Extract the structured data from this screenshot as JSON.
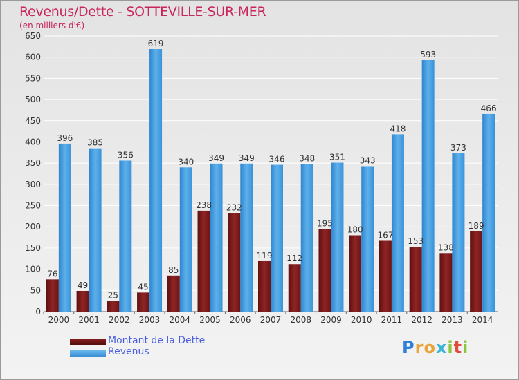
{
  "title": "Revenus/Dette - SOTTEVILLE-SUR-MER",
  "subtitle": "(en milliers d'€)",
  "logo": {
    "letters": [
      {
        "ch": "P",
        "color": "#2f7fd6"
      },
      {
        "ch": "r",
        "color": "#e8a33a"
      },
      {
        "ch": "o",
        "color": "#e8a33a"
      },
      {
        "ch": "x",
        "color": "#3bb3d8"
      },
      {
        "ch": "i",
        "color": "#8cc63f"
      },
      {
        "ch": "t",
        "color": "#e24a3b"
      },
      {
        "ch": "i",
        "color": "#8cc63f"
      }
    ]
  },
  "colors": {
    "debt": "#7b1a1a",
    "debt_light": "#a8302f",
    "revenue": "#3d97dc",
    "revenue_light": "#5fb2ea",
    "grid": "#ffffff",
    "axis_text": "#333333"
  },
  "chart_data": {
    "type": "bar",
    "categories": [
      "2000",
      "2001",
      "2002",
      "2003",
      "2004",
      "2005",
      "2006",
      "2007",
      "2008",
      "2009",
      "2010",
      "2011",
      "2012",
      "2013",
      "2014"
    ],
    "series": [
      {
        "name": "Montant de la Dette",
        "values": [
          76,
          49,
          25,
          45,
          85,
          238,
          232,
          119,
          112,
          195,
          180,
          167,
          153,
          138,
          189
        ]
      },
      {
        "name": "Revenus",
        "values": [
          396,
          385,
          356,
          619,
          340,
          349,
          349,
          346,
          348,
          351,
          343,
          418,
          593,
          373,
          466
        ]
      }
    ],
    "ylim": [
      0,
      650
    ],
    "yticks": [
      0,
      50,
      100,
      150,
      200,
      250,
      300,
      350,
      400,
      450,
      500,
      550,
      600,
      650
    ],
    "grid": true,
    "legend_position": "bottom-left"
  }
}
